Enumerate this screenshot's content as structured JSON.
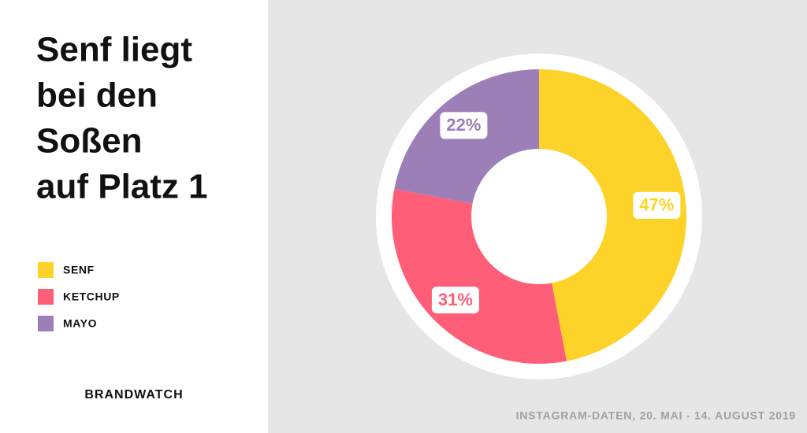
{
  "chart_data": {
    "type": "donut",
    "title": [
      "Senf liegt",
      "bei den",
      "Soßen",
      "auf Platz 1"
    ],
    "categories": [
      "SENF",
      "KETCHUP",
      "MAYO"
    ],
    "values": [
      47,
      31,
      22
    ],
    "value_labels": [
      "47%",
      "31%",
      "22%"
    ],
    "colors": [
      "#fdd329",
      "#fe5e78",
      "#9d7fb8"
    ],
    "brand": "BRANDWATCH",
    "source": "INSTAGRAM-DATEN, 20. MAI - 14. AUGUST 2019"
  }
}
